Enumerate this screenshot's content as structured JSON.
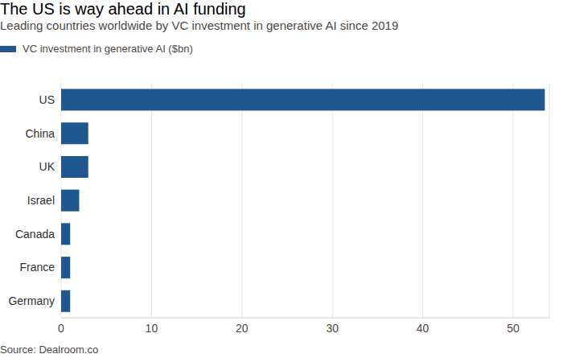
{
  "chart_data": {
    "type": "bar",
    "title": "The US is way ahead in AI funding",
    "subtitle": "Leading countries worldwide by VC investment in generative AI since 2019",
    "source": "Source: Dealroom.co",
    "orientation": "horizontal",
    "categories": [
      "US",
      "China",
      "UK",
      "Israel",
      "Canada",
      "France",
      "Germany"
    ],
    "series": [
      {
        "name": "VC investment in generative AI ($bn)",
        "color": "#1f5791",
        "values": [
          53.5,
          3.0,
          3.0,
          2.0,
          1.0,
          1.0,
          1.0
        ]
      }
    ],
    "xlim": [
      0,
      54
    ],
    "xticks": [
      0,
      10,
      20,
      30,
      40,
      50
    ],
    "grid": true
  }
}
